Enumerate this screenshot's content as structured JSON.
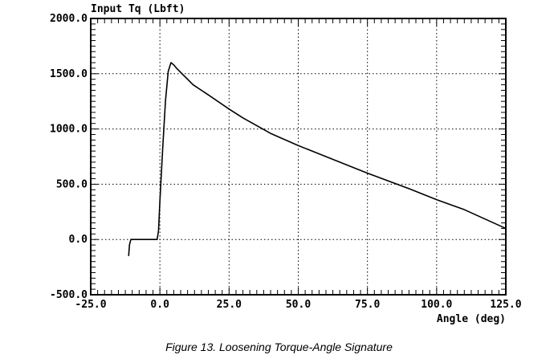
{
  "caption": "Figure 13. Loosening Torque-Angle Signature",
  "colors": {
    "line": "#000000",
    "grid": "#000000",
    "background": "#ffffff"
  },
  "chart_data": {
    "type": "line",
    "title": "",
    "ylabel": "Input Tq (Lbft)",
    "xlabel": "Angle (deg)",
    "xlim": [
      -25,
      125
    ],
    "ylim": [
      -500,
      2000
    ],
    "xticks": [
      -25,
      0,
      25,
      50,
      75,
      100,
      125
    ],
    "yticks": [
      -500,
      0,
      500,
      1000,
      1500,
      2000
    ],
    "xtick_labels": [
      "-25.0",
      "0.0",
      "25.0",
      "50.0",
      "75.0",
      "100.0",
      "125.0"
    ],
    "ytick_labels": [
      "-500.0",
      "0.0",
      "500.0",
      "1000.0",
      "1500.0",
      "2000.0"
    ],
    "grid": true,
    "grid_style": "dotted",
    "legend": "none",
    "series": [
      {
        "x": [
          -11.3,
          -11.0,
          -10.5,
          -10.0,
          -5.0,
          -1.0,
          -0.5,
          0.0,
          1.0,
          2.0,
          3.0,
          4.0,
          5.0,
          6.0,
          8.0,
          12.0,
          18.0,
          25.0,
          30.0,
          40.0,
          50.0,
          60.0,
          75.0,
          90.0,
          100.0,
          110.0,
          125.0
        ],
        "y": [
          -150,
          -50,
          0,
          0,
          0,
          0,
          80,
          350,
          820,
          1250,
          1520,
          1600,
          1580,
          1550,
          1500,
          1400,
          1300,
          1180,
          1100,
          960,
          850,
          750,
          600,
          460,
          360,
          270,
          100
        ]
      }
    ]
  }
}
